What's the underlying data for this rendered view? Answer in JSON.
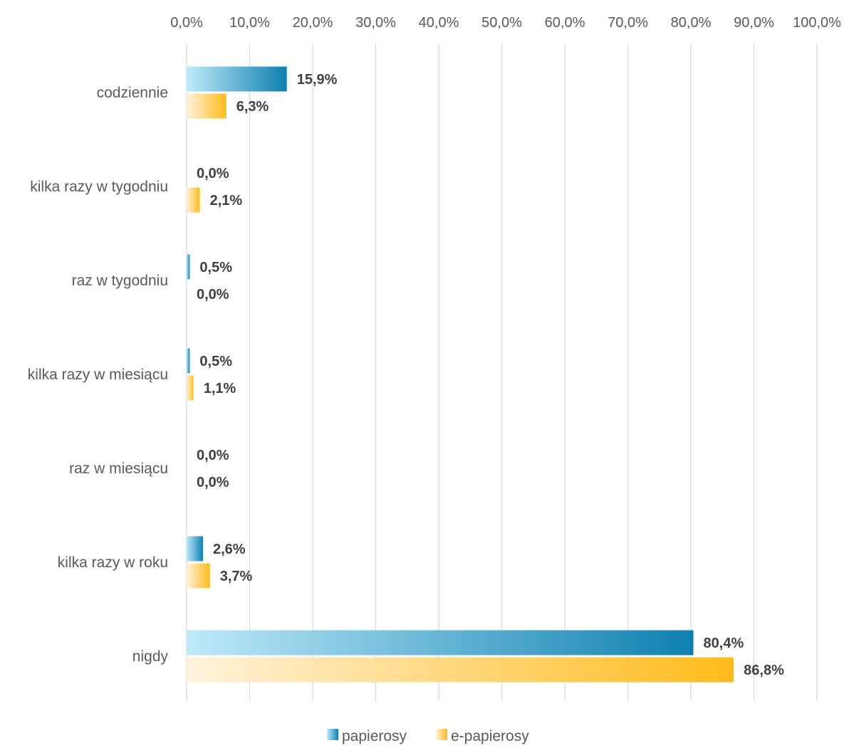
{
  "chart_data": {
    "type": "bar",
    "orientation": "horizontal",
    "categories": [
      "codziennie",
      "kilka razy w tygodniu",
      "raz w tygodniu",
      "kilka razy w miesiącu",
      "raz w miesiącu",
      "kilka razy w roku",
      "nigdy"
    ],
    "series": [
      {
        "name": "papierosy",
        "values": [
          15.9,
          0.0,
          0.5,
          0.5,
          0.0,
          2.6,
          80.4
        ],
        "labels": [
          "15,9%",
          "0,0%",
          "0,5%",
          "0,5%",
          "0,0%",
          "2,6%",
          "80,4%"
        ],
        "gradient": [
          "#bfeafa",
          "#0e80b0"
        ]
      },
      {
        "name": "e-papierosy",
        "values": [
          6.3,
          2.1,
          0.0,
          1.1,
          0.0,
          3.7,
          86.8
        ],
        "labels": [
          "6,3%",
          "2,1%",
          "0,0%",
          "1,1%",
          "0,0%",
          "3,7%",
          "86,8%"
        ],
        "gradient": [
          "#fff3dd",
          "#ffbb1a"
        ]
      }
    ],
    "x_ticks": [
      "0,0%",
      "10,0%",
      "20,0%",
      "30,0%",
      "40,0%",
      "50,0%",
      "60,0%",
      "70,0%",
      "80,0%",
      "90,0%",
      "100,0%"
    ],
    "xlim": [
      0,
      100
    ],
    "x_axis_position": "top",
    "grid": true,
    "legend_position": "bottom",
    "title": "",
    "xlabel": "",
    "ylabel": ""
  }
}
